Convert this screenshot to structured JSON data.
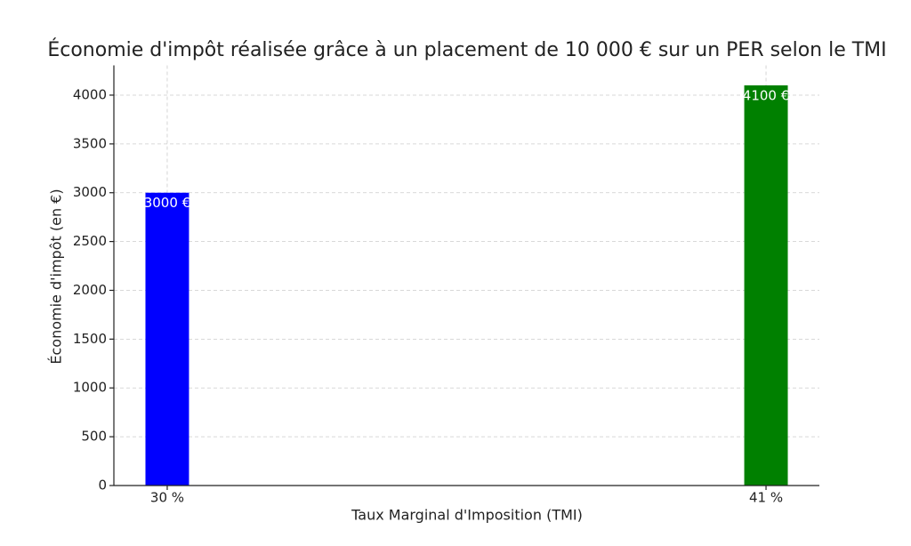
{
  "chart_data": {
    "type": "bar",
    "title": "Économie d'impôt réalisée grâce à un placement de 10 000 € sur un PER selon le TMI",
    "x_label": "Taux Marginal d'Imposition (TMI)",
    "y_label": "Économie d'impôt (en €)",
    "x": [
      30,
      41
    ],
    "values": [
      3000,
      4100
    ],
    "value_labels": [
      "3000 €",
      "4100 €"
    ],
    "colors": [
      "#0000ff",
      "#008000"
    ],
    "xlim": [
      29.02,
      41.98
    ],
    "xticks": [
      {
        "value": 30,
        "label": "30 %"
      },
      {
        "value": 41,
        "label": "41 %"
      }
    ],
    "ylim": [
      0,
      4305
    ],
    "yticks": [
      0,
      500,
      1000,
      1500,
      2000,
      2500,
      3000,
      3500,
      4000
    ],
    "grid": true
  }
}
